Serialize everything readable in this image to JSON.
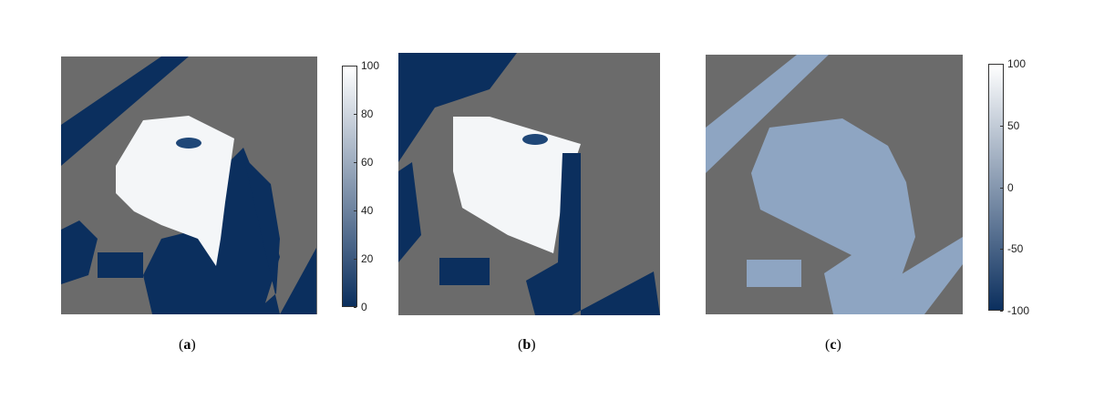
{
  "colors": {
    "land": "#6b6b6b",
    "low": "#0b2f5e",
    "high": "#ffffff",
    "mid_c": "#8ea5c2"
  },
  "panels": [
    {
      "id": "a",
      "caption_open": "(",
      "caption_letter": "a",
      "caption_close": ")"
    },
    {
      "id": "b",
      "caption_open": "(",
      "caption_letter": "b",
      "caption_close": ")"
    },
    {
      "id": "c",
      "caption_open": "(",
      "caption_letter": "c",
      "caption_close": ")"
    }
  ],
  "colorbars": [
    {
      "for": "a",
      "range": [
        0,
        100
      ],
      "ticks": [
        "100",
        "80",
        "60",
        "40",
        "20",
        "0"
      ]
    },
    {
      "for": "c",
      "range": [
        -100,
        100
      ],
      "ticks": [
        "100",
        "50",
        "0",
        "-50",
        "-100"
      ]
    }
  ]
}
